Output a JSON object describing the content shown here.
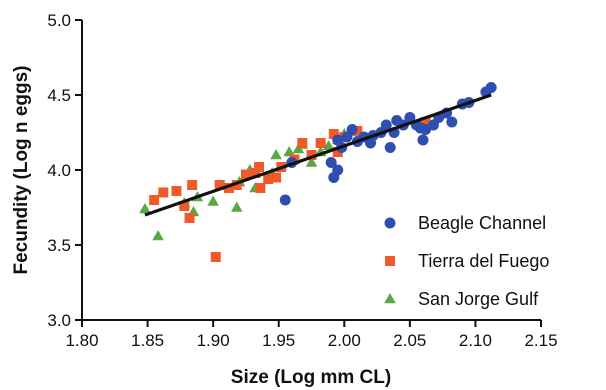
{
  "chart_data": {
    "type": "scatter",
    "title": "",
    "xlabel": "Size (Log mm CL)",
    "ylabel": "Fecundity (Log n eggs)",
    "xlim": [
      1.8,
      2.15
    ],
    "ylim": [
      3.0,
      5.0
    ],
    "x_ticks": [
      "1.80",
      "1.85",
      "1.90",
      "1.95",
      "2.00",
      "2.05",
      "2.10",
      "2.15"
    ],
    "y_ticks": [
      "3.0",
      "3.5",
      "4.0",
      "4.5",
      "5.0"
    ],
    "legend_position": "bottom-right",
    "grid": false,
    "series": [
      {
        "name": "Beagle Channel",
        "marker": "circle",
        "color": "#2f4fb0",
        "points": [
          [
            1.955,
            3.8
          ],
          [
            1.96,
            4.05
          ],
          [
            1.99,
            4.05
          ],
          [
            1.992,
            3.95
          ],
          [
            1.995,
            4.0
          ],
          [
            1.995,
            4.2
          ],
          [
            1.998,
            4.15
          ],
          [
            2.002,
            4.22
          ],
          [
            2.006,
            4.27
          ],
          [
            2.01,
            4.19
          ],
          [
            2.015,
            4.22
          ],
          [
            2.02,
            4.18
          ],
          [
            2.022,
            4.23
          ],
          [
            2.028,
            4.25
          ],
          [
            2.032,
            4.3
          ],
          [
            2.035,
            4.15
          ],
          [
            2.038,
            4.25
          ],
          [
            2.04,
            4.33
          ],
          [
            2.045,
            4.3
          ],
          [
            2.05,
            4.35
          ],
          [
            2.055,
            4.3
          ],
          [
            2.058,
            4.28
          ],
          [
            2.06,
            4.2
          ],
          [
            2.062,
            4.27
          ],
          [
            2.068,
            4.3
          ],
          [
            2.072,
            4.35
          ],
          [
            2.078,
            4.38
          ],
          [
            2.082,
            4.32
          ],
          [
            2.09,
            4.44
          ],
          [
            2.095,
            4.45
          ],
          [
            2.108,
            4.52
          ],
          [
            2.112,
            4.55
          ]
        ]
      },
      {
        "name": "Tierra del Fuego",
        "marker": "square",
        "color": "#f05a28",
        "points": [
          [
            1.855,
            3.8
          ],
          [
            1.862,
            3.85
          ],
          [
            1.872,
            3.86
          ],
          [
            1.878,
            3.76
          ],
          [
            1.882,
            3.68
          ],
          [
            1.884,
            3.9
          ],
          [
            1.902,
            3.42
          ],
          [
            1.905,
            3.9
          ],
          [
            1.912,
            3.88
          ],
          [
            1.918,
            3.9
          ],
          [
            1.925,
            3.97
          ],
          [
            1.932,
            3.98
          ],
          [
            1.935,
            4.02
          ],
          [
            1.936,
            3.88
          ],
          [
            1.942,
            3.94
          ],
          [
            1.948,
            3.95
          ],
          [
            1.952,
            4.02
          ],
          [
            1.962,
            4.07
          ],
          [
            1.968,
            4.18
          ],
          [
            1.975,
            4.1
          ],
          [
            1.982,
            4.18
          ],
          [
            1.992,
            4.24
          ],
          [
            1.995,
            4.12
          ],
          [
            2.0,
            4.22
          ],
          [
            2.01,
            4.26
          ],
          [
            2.062,
            4.32
          ]
        ]
      },
      {
        "name": "San Jorge Gulf",
        "marker": "triangle",
        "color": "#5aa845",
        "points": [
          [
            1.848,
            3.74
          ],
          [
            1.858,
            3.56
          ],
          [
            1.878,
            3.78
          ],
          [
            1.885,
            3.72
          ],
          [
            1.888,
            3.82
          ],
          [
            1.9,
            3.79
          ],
          [
            1.918,
            3.75
          ],
          [
            1.92,
            3.92
          ],
          [
            1.928,
            4.0
          ],
          [
            1.932,
            3.88
          ],
          [
            1.945,
            3.98
          ],
          [
            1.948,
            4.1
          ],
          [
            1.958,
            4.12
          ],
          [
            1.965,
            4.14
          ],
          [
            1.968,
            4.17
          ],
          [
            1.975,
            4.05
          ],
          [
            1.982,
            4.12
          ],
          [
            1.988,
            4.16
          ],
          [
            1.995,
            4.2
          ],
          [
            2.0,
            4.24
          ],
          [
            2.005,
            4.26
          ]
        ]
      }
    ],
    "fit_line": {
      "color": "#111111",
      "points": [
        [
          1.848,
          3.7
        ],
        [
          2.112,
          4.5
        ]
      ]
    }
  }
}
